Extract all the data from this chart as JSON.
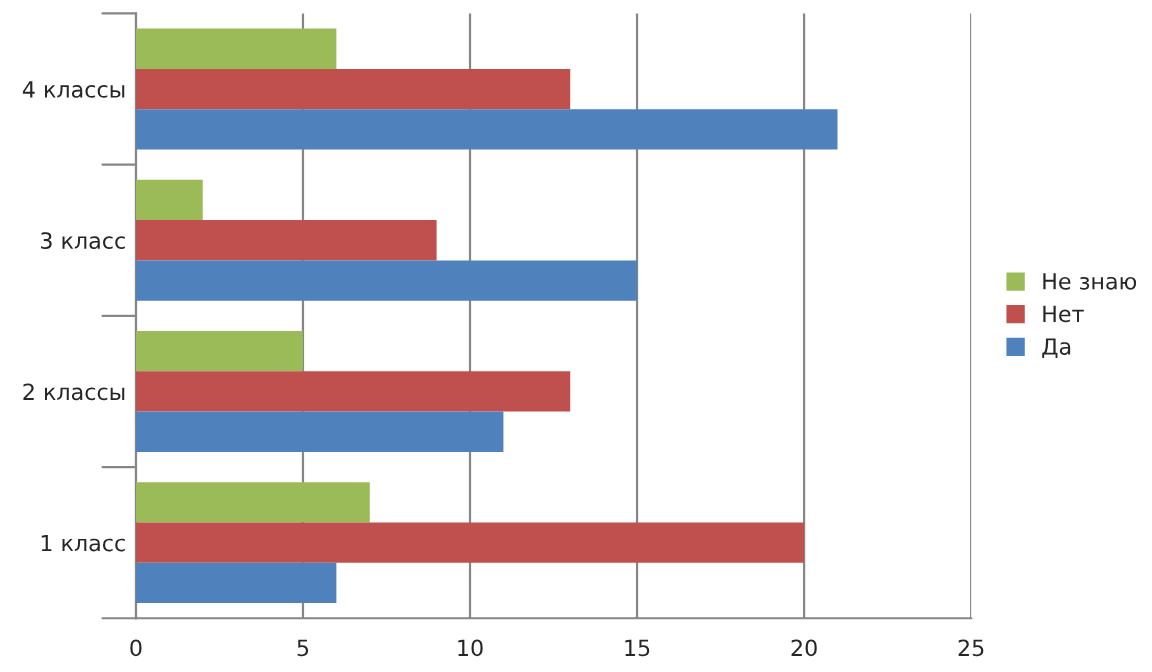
{
  "chart_data": {
    "type": "bar",
    "orientation": "horizontal",
    "categories": [
      "4 классы",
      "3 класс",
      "2 классы",
      "1 класс"
    ],
    "series": [
      {
        "name": "Не знаю",
        "color": "#9bbb59",
        "values": [
          6,
          2,
          5,
          7
        ]
      },
      {
        "name": "Нет",
        "color": "#c0504d",
        "values": [
          13,
          9,
          13,
          20
        ]
      },
      {
        "name": "Да",
        "color": "#4f81bd",
        "values": [
          21,
          15,
          11,
          6
        ]
      }
    ],
    "xlim": [
      0,
      25
    ],
    "xticks": [
      0,
      5,
      10,
      15,
      20,
      25
    ],
    "grid": "x",
    "legend": "right"
  }
}
